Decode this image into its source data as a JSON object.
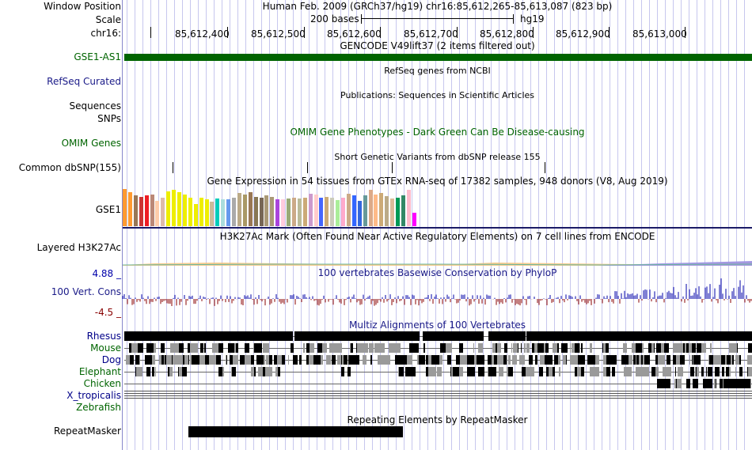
{
  "header": {
    "window_position_label": "Window Position",
    "scale_label": "Scale",
    "chrom_label": "chr16:",
    "assembly_text": "Human Feb. 2009 (GRCh37/hg19)   chr16:85,612,265-85,613,087 (823 bp)",
    "scale_text": "200 bases",
    "scale_db": "hg19",
    "ruler_ticks": [
      "85,612,400",
      "85,612,500",
      "85,612,600",
      "85,612,700",
      "85,612,800",
      "85,612,900",
      "85,613,000"
    ]
  },
  "tracks": {
    "gencode": {
      "title": "GENCODE V49lift37 (2 items filtered out)",
      "item_label": "GSE1-AS1",
      "color": "#006400"
    },
    "refseq": {
      "label": "RefSeq Curated",
      "title": "RefSeq genes from NCBI"
    },
    "publications": {
      "label": "Sequences",
      "title": "Publications: Sequences in Scientific Articles"
    },
    "snps_label": "SNPs",
    "omim": {
      "label": "OMIM Genes",
      "title": "OMIM Gene Phenotypes - Dark Green Can Be Disease-causing",
      "color": "#006400"
    },
    "dbsnp": {
      "label": "Common dbSNP(155)",
      "title": "Short Genetic Variants from dbSNP release 155"
    },
    "gtex": {
      "label": "GSE1",
      "title": "Gene Expression in 54 tissues from GTEx RNA-seq of 17382 samples, 948 donors (V8, Aug 2019)",
      "bar_values": [
        0.98,
        0.9,
        0.82,
        0.78,
        0.82,
        0.84,
        0.66,
        0.76,
        0.92,
        0.96,
        0.9,
        0.84,
        0.76,
        0.58,
        0.74,
        0.7,
        0.64,
        0.72,
        0.7,
        0.7,
        0.74,
        0.88,
        0.84,
        0.9,
        0.78,
        0.74,
        0.82,
        0.78,
        0.7,
        0.7,
        0.72,
        0.74,
        0.72,
        0.76,
        0.86,
        0.84,
        0.74,
        0.78,
        0.74,
        0.68,
        0.76,
        0.86,
        0.82,
        0.66,
        0.82,
        0.96,
        0.84,
        0.88,
        0.8,
        0.72,
        0.76,
        0.82,
        0.96,
        0.36
      ],
      "bar_colors": [
        "#ff9a30",
        "#ff9a30",
        "#997755",
        "#cc3333",
        "#ee1c24",
        "#bb8877",
        "#ffccaa",
        "#ddbbaa",
        "#eeee00",
        "#eeee00",
        "#eeee00",
        "#eeee00",
        "#eeee00",
        "#eeee00",
        "#eeee00",
        "#eeee00",
        "#ccbb99",
        "#00ccbb",
        "#aadddd",
        "#6699ee",
        "#aaaaaa",
        "#bbaa88",
        "#aa9966",
        "#997755",
        "#887755",
        "#776655",
        "#aa9977",
        "#aa9977",
        "#aa44dd",
        "#ffccdd",
        "#99aa77",
        "#ccaa88",
        "#bbbb99",
        "#ccaa77",
        "#cc99cc",
        "#ffcccc",
        "#4466ff",
        "#ccaa77",
        "#ccccbb",
        "#aaee99",
        "#ffaacc",
        "#ccaa88",
        "#3366ff",
        "#3366dd",
        "#669999",
        "#ddaa88",
        "#ffbb88",
        "#ccaa77",
        "#bbaa88",
        "#ddbb99",
        "#009955",
        "#338866",
        "#ffbbcc",
        "#ff00ff"
      ]
    },
    "h3k27ac": {
      "label": "Layered H3K27Ac",
      "title": "H3K27Ac Mark (Often Found Near Active Regulatory Elements) on 7 cell lines from ENCODE"
    },
    "phylop": {
      "label": "100 Vert. Cons",
      "title": "100 vertebrates Basewise Conservation by PhyloP",
      "max_label": "4.88 _",
      "min_label": "-4.5 _",
      "pos_color": "#0000aa",
      "neg_color": "#880000"
    },
    "multiz": {
      "title": "Multiz Alignments of 100 Vertebrates",
      "species": [
        "Rhesus",
        "Mouse",
        "Dog",
        "Elephant",
        "Chicken",
        "X_tropicalis",
        "Zebrafish"
      ],
      "species_colors": [
        "#000088",
        "#006400",
        "#000088",
        "#006400",
        "#006400",
        "#000088",
        "#006400"
      ]
    },
    "repeatmasker": {
      "label": "RepeatMasker",
      "title": "Repeating Elements by RepeatMasker"
    }
  }
}
